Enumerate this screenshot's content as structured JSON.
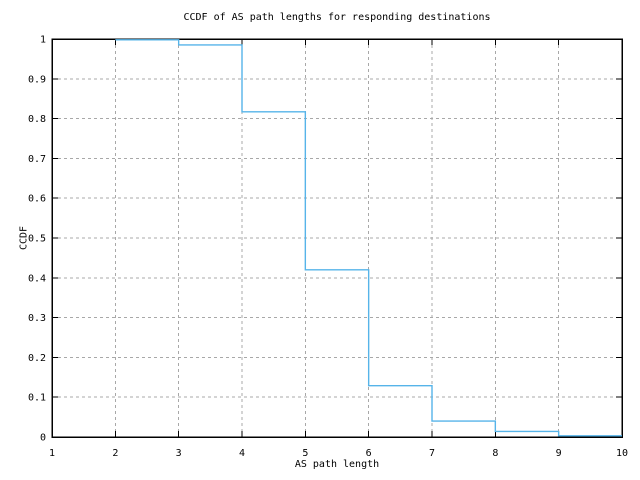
{
  "background": "#ffffff",
  "chart_data": {
    "type": "line",
    "subtype": "step-function",
    "title": "CCDF of AS path lengths for responding destinations",
    "xlabel": "AS path length",
    "ylabel": "CCDF",
    "xlim": [
      1,
      10
    ],
    "ylim": [
      0,
      1
    ],
    "x_ticks": [
      1,
      2,
      3,
      4,
      5,
      6,
      7,
      8,
      9,
      10
    ],
    "y_ticks": [
      0,
      0.1,
      0.2,
      0.3,
      0.4,
      0.5,
      0.6,
      0.7,
      0.8,
      0.9,
      1
    ],
    "grid": true,
    "grid_style": "dashed",
    "legend": "none",
    "line_color": "#56b4e9",
    "grid_color": "#a8a8a8",
    "border_color": "#000000",
    "steps": [
      {
        "x_start": 2,
        "x_end": 3,
        "ccdf": 0.998
      },
      {
        "x_start": 3,
        "x_end": 4,
        "ccdf": 0.985
      },
      {
        "x_start": 4,
        "x_end": 5,
        "ccdf": 0.817
      },
      {
        "x_start": 5,
        "x_end": 6,
        "ccdf": 0.42
      },
      {
        "x_start": 6,
        "x_end": 7,
        "ccdf": 0.129
      },
      {
        "x_start": 7,
        "x_end": 8,
        "ccdf": 0.04
      },
      {
        "x_start": 8,
        "x_end": 9,
        "ccdf": 0.014
      },
      {
        "x_start": 9,
        "x_end": 10,
        "ccdf": 0.003
      }
    ]
  }
}
